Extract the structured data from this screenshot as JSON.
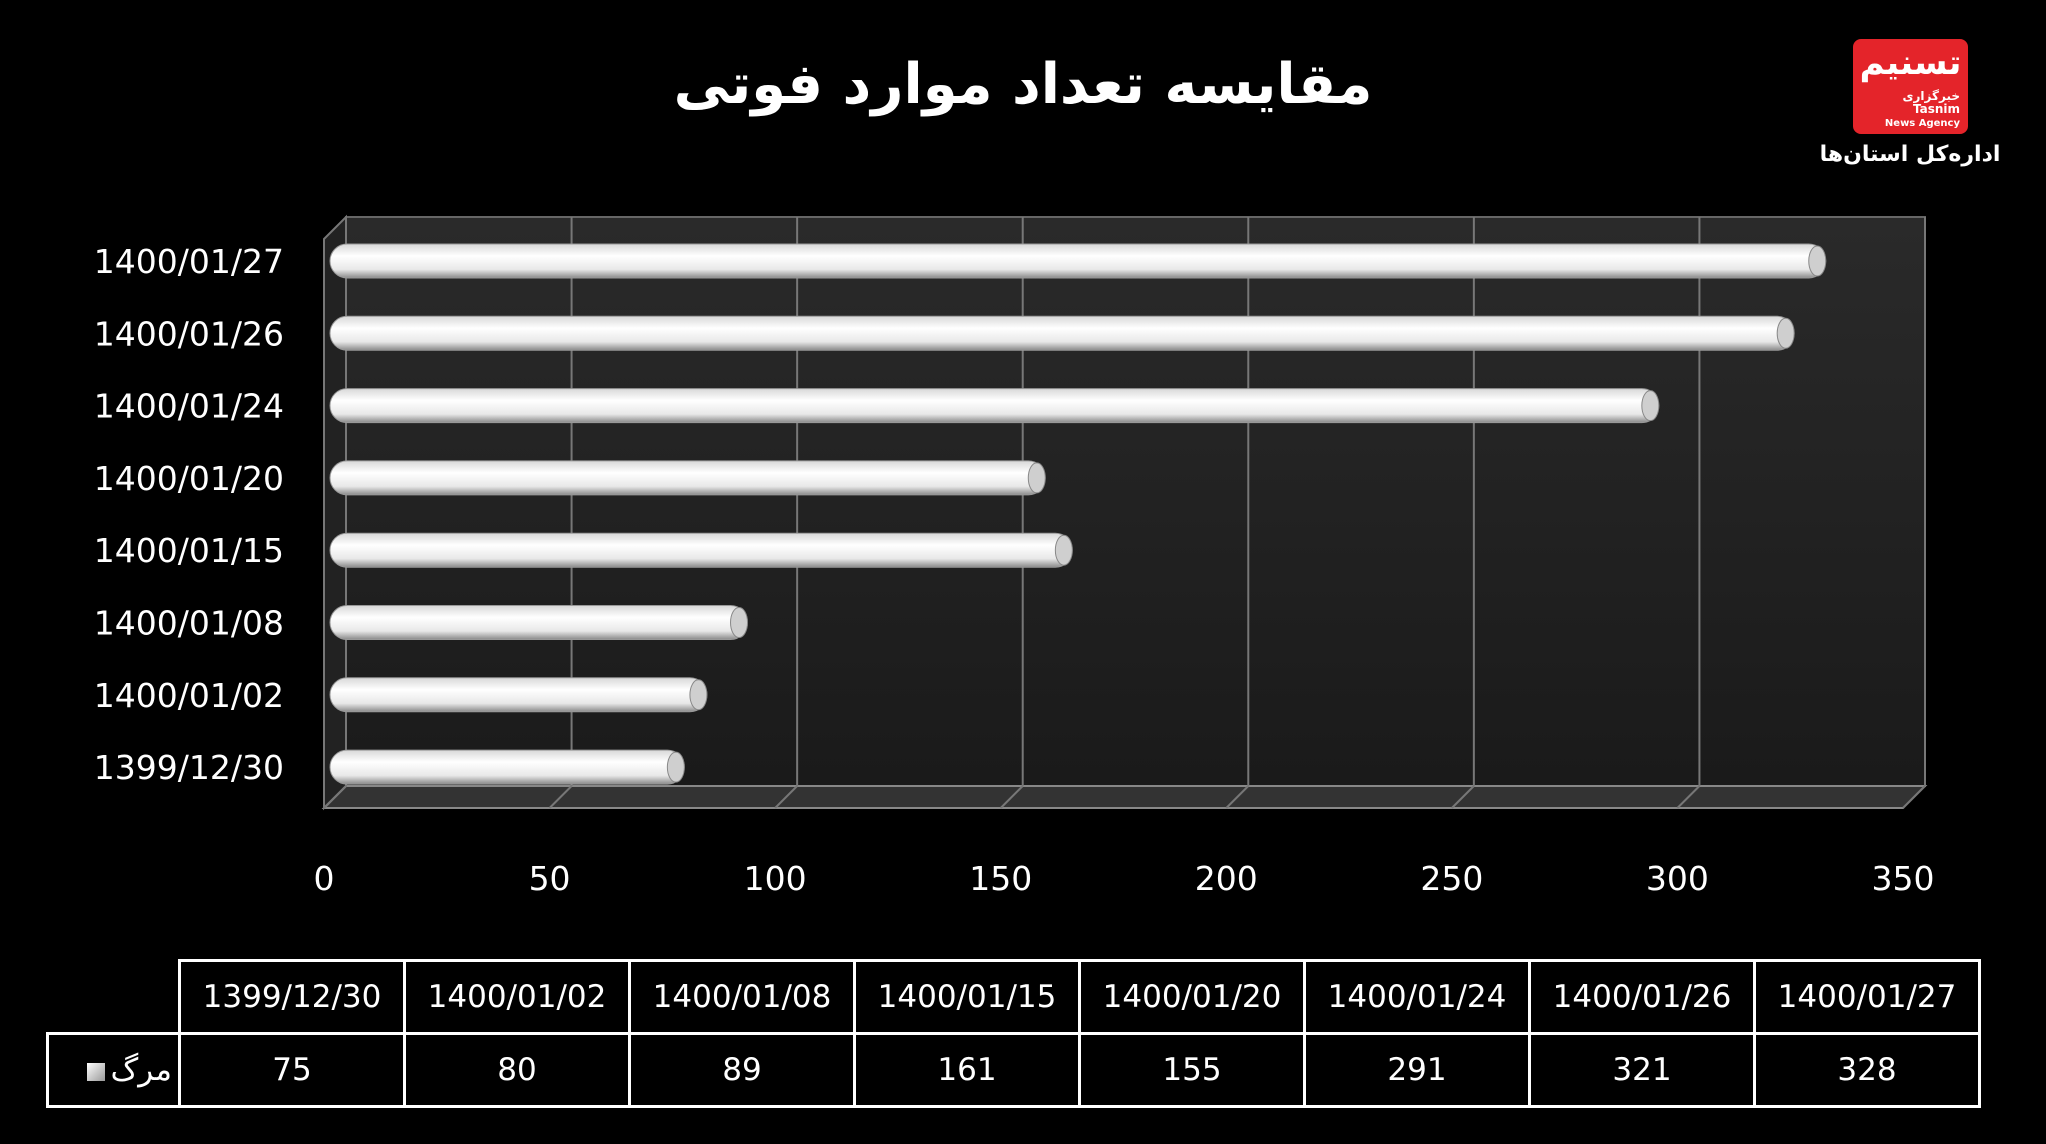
{
  "title": "مقایسه تعداد موارد فوتی",
  "logo": {
    "main": "تسنیم",
    "sub1": "خبرگزاری",
    "sub2": "Tasnim",
    "sub3": "News Agency",
    "caption": "اداره‌کل استان‌ها"
  },
  "watermark": "TASNIM NEWS AGENCY خبرگزاری تسنیم",
  "chart_data": {
    "type": "bar",
    "orientation": "horizontal",
    "categories": [
      "1399/12/30",
      "1400/01/02",
      "1400/01/08",
      "1400/01/15",
      "1400/01/20",
      "1400/01/24",
      "1400/01/26",
      "1400/01/27"
    ],
    "series": [
      {
        "name": "مرگ",
        "values": [
          75,
          80,
          89,
          161,
          155,
          291,
          321,
          328
        ]
      }
    ],
    "xlim": [
      0,
      350
    ],
    "xticks": [
      0,
      50,
      100,
      150,
      200,
      250,
      300,
      350
    ],
    "grid": true,
    "legend": "data-table",
    "bar_color": "#ffffff",
    "background": "#000000"
  }
}
